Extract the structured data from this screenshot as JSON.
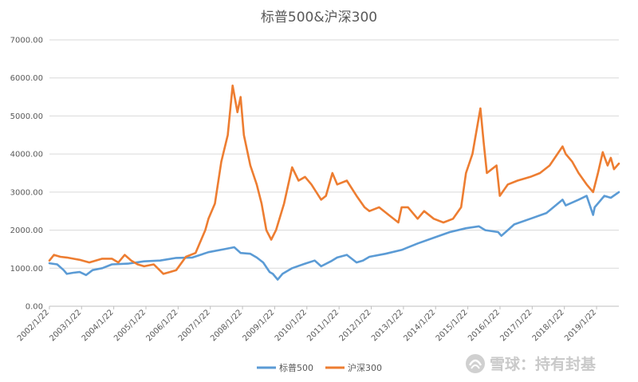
{
  "chart_data": {
    "type": "line",
    "title": "标普500&沪深300",
    "xlabel": "",
    "ylabel": "",
    "ylim": [
      0,
      7000
    ],
    "yticks": [
      "0.00",
      "1000.00",
      "2000.00",
      "3000.00",
      "4000.00",
      "5000.00",
      "6000.00",
      "7000.00"
    ],
    "x_range": [
      2002.06,
      2019.75
    ],
    "x_ticks": [
      "2002/1/22",
      "2003/1/22",
      "2004/1/22",
      "2005/1/22",
      "2006/1/22",
      "2007/1/22",
      "2008/1/22",
      "2009/1/22",
      "2010/1/22",
      "2011/1/22",
      "2012/1/22",
      "2013/1/22",
      "2014/1/22",
      "2015/1/22",
      "2016/1/22",
      "2017/1/22",
      "2018/1/22",
      "2019/1/22"
    ],
    "grid": true,
    "legend_position": "bottom",
    "series": [
      {
        "name": "标普500",
        "color": "#5b9bd5",
        "points": [
          [
            2002.06,
            1130
          ],
          [
            2002.3,
            1100
          ],
          [
            2002.5,
            950
          ],
          [
            2002.6,
            850
          ],
          [
            2002.8,
            880
          ],
          [
            2003.0,
            900
          ],
          [
            2003.2,
            820
          ],
          [
            2003.4,
            950
          ],
          [
            2003.7,
            1000
          ],
          [
            2004.0,
            1100
          ],
          [
            2004.5,
            1120
          ],
          [
            2005.0,
            1180
          ],
          [
            2005.5,
            1200
          ],
          [
            2006.0,
            1270
          ],
          [
            2006.5,
            1280
          ],
          [
            2007.0,
            1420
          ],
          [
            2007.5,
            1500
          ],
          [
            2007.8,
            1550
          ],
          [
            2008.0,
            1400
          ],
          [
            2008.3,
            1380
          ],
          [
            2008.5,
            1280
          ],
          [
            2008.7,
            1150
          ],
          [
            2008.9,
            900
          ],
          [
            2009.0,
            850
          ],
          [
            2009.15,
            700
          ],
          [
            2009.3,
            850
          ],
          [
            2009.6,
            1000
          ],
          [
            2010.0,
            1120
          ],
          [
            2010.3,
            1200
          ],
          [
            2010.5,
            1050
          ],
          [
            2010.8,
            1180
          ],
          [
            2011.0,
            1280
          ],
          [
            2011.3,
            1350
          ],
          [
            2011.6,
            1150
          ],
          [
            2011.8,
            1200
          ],
          [
            2012.0,
            1300
          ],
          [
            2012.5,
            1380
          ],
          [
            2013.0,
            1480
          ],
          [
            2013.5,
            1650
          ],
          [
            2014.0,
            1800
          ],
          [
            2014.5,
            1950
          ],
          [
            2015.0,
            2050
          ],
          [
            2015.4,
            2100
          ],
          [
            2015.6,
            2000
          ],
          [
            2016.0,
            1950
          ],
          [
            2016.1,
            1850
          ],
          [
            2016.5,
            2150
          ],
          [
            2017.0,
            2300
          ],
          [
            2017.5,
            2450
          ],
          [
            2018.0,
            2800
          ],
          [
            2018.1,
            2650
          ],
          [
            2018.5,
            2800
          ],
          [
            2018.75,
            2900
          ],
          [
            2018.95,
            2400
          ],
          [
            2019.0,
            2600
          ],
          [
            2019.3,
            2900
          ],
          [
            2019.5,
            2850
          ],
          [
            2019.75,
            3000
          ]
        ]
      },
      {
        "name": "沪深300",
        "color": "#ed7d31",
        "points": [
          [
            2002.06,
            1200
          ],
          [
            2002.2,
            1350
          ],
          [
            2002.4,
            1300
          ],
          [
            2002.6,
            1280
          ],
          [
            2002.8,
            1250
          ],
          [
            2003.0,
            1220
          ],
          [
            2003.3,
            1150
          ],
          [
            2003.5,
            1200
          ],
          [
            2003.7,
            1250
          ],
          [
            2004.0,
            1250
          ],
          [
            2004.2,
            1150
          ],
          [
            2004.4,
            1350
          ],
          [
            2004.6,
            1200
          ],
          [
            2004.8,
            1100
          ],
          [
            2005.0,
            1050
          ],
          [
            2005.3,
            1100
          ],
          [
            2005.6,
            850
          ],
          [
            2005.8,
            900
          ],
          [
            2006.0,
            950
          ],
          [
            2006.3,
            1300
          ],
          [
            2006.6,
            1400
          ],
          [
            2006.9,
            2000
          ],
          [
            2007.0,
            2300
          ],
          [
            2007.2,
            2700
          ],
          [
            2007.4,
            3800
          ],
          [
            2007.6,
            4500
          ],
          [
            2007.75,
            5800
          ],
          [
            2007.9,
            5100
          ],
          [
            2008.0,
            5500
          ],
          [
            2008.1,
            4500
          ],
          [
            2008.3,
            3700
          ],
          [
            2008.5,
            3200
          ],
          [
            2008.65,
            2700
          ],
          [
            2008.8,
            2000
          ],
          [
            2008.95,
            1750
          ],
          [
            2009.1,
            2000
          ],
          [
            2009.35,
            2700
          ],
          [
            2009.6,
            3650
          ],
          [
            2009.8,
            3300
          ],
          [
            2010.0,
            3400
          ],
          [
            2010.2,
            3200
          ],
          [
            2010.5,
            2800
          ],
          [
            2010.65,
            2900
          ],
          [
            2010.85,
            3500
          ],
          [
            2011.0,
            3200
          ],
          [
            2011.3,
            3300
          ],
          [
            2011.6,
            2900
          ],
          [
            2011.85,
            2600
          ],
          [
            2012.0,
            2500
          ],
          [
            2012.3,
            2600
          ],
          [
            2012.6,
            2400
          ],
          [
            2012.9,
            2200
          ],
          [
            2013.0,
            2600
          ],
          [
            2013.2,
            2600
          ],
          [
            2013.5,
            2300
          ],
          [
            2013.7,
            2500
          ],
          [
            2014.0,
            2300
          ],
          [
            2014.3,
            2200
          ],
          [
            2014.6,
            2300
          ],
          [
            2014.85,
            2600
          ],
          [
            2015.0,
            3500
          ],
          [
            2015.2,
            4000
          ],
          [
            2015.45,
            5200
          ],
          [
            2015.55,
            4300
          ],
          [
            2015.65,
            3500
          ],
          [
            2015.8,
            3600
          ],
          [
            2015.95,
            3700
          ],
          [
            2016.05,
            2900
          ],
          [
            2016.3,
            3200
          ],
          [
            2016.6,
            3300
          ],
          [
            2017.0,
            3400
          ],
          [
            2017.3,
            3500
          ],
          [
            2017.6,
            3700
          ],
          [
            2018.0,
            4200
          ],
          [
            2018.1,
            4000
          ],
          [
            2018.3,
            3800
          ],
          [
            2018.5,
            3500
          ],
          [
            2018.75,
            3200
          ],
          [
            2018.95,
            3000
          ],
          [
            2019.1,
            3500
          ],
          [
            2019.25,
            4050
          ],
          [
            2019.4,
            3700
          ],
          [
            2019.5,
            3900
          ],
          [
            2019.6,
            3600
          ],
          [
            2019.75,
            3750
          ]
        ]
      }
    ]
  },
  "watermark": {
    "icon": "snowball-logo-icon",
    "text": "雪球：持有封基"
  }
}
